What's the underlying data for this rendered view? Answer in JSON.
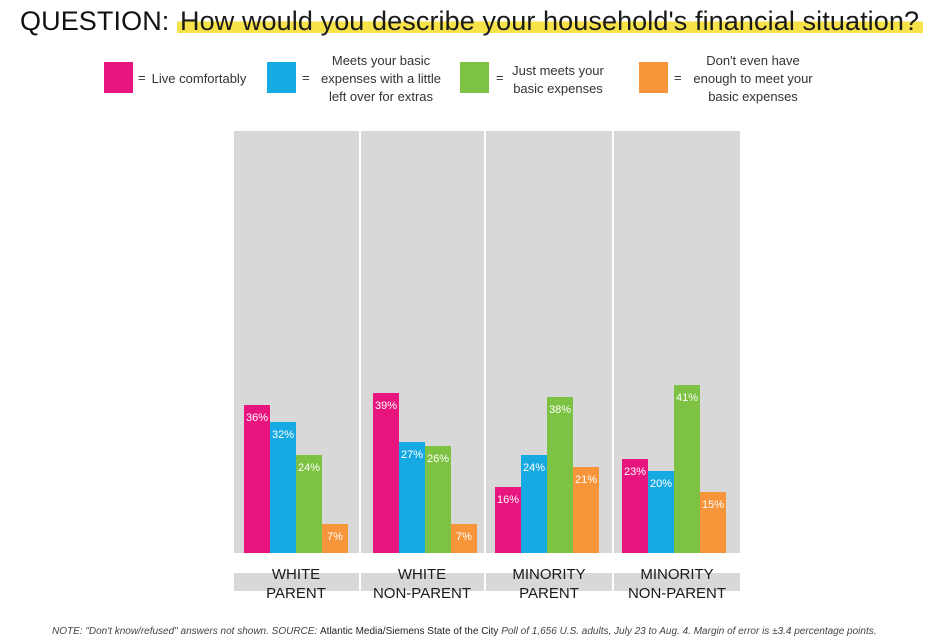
{
  "title": {
    "prefix": "QUESTION:",
    "question": "How would you describe your household's financial situation?"
  },
  "legend": [
    {
      "eq": "=",
      "text": "Live comfortably",
      "color": "#e8157f"
    },
    {
      "eq": "=",
      "text": "Meets your basic\nexpenses with a little\nleft over for extras",
      "color": "#17a9e1"
    },
    {
      "eq": "=",
      "text": "Just meets your\nbasic expenses",
      "color": "#7dc242"
    },
    {
      "eq": "=",
      "text": "Don't even have\nenough to meet your\nbasic expenses",
      "color": "#f7953b"
    }
  ],
  "chart_data": {
    "type": "bar",
    "title": "How would you describe your household's financial situation?",
    "categories": [
      "WHITE\nPARENT",
      "WHITE\nNON-PARENT",
      "MINORITY\nPARENT",
      "MINORITY\nNON-PARENT"
    ],
    "series": [
      {
        "name": "Live comfortably",
        "color": "#e8157f",
        "values": [
          36,
          39,
          16,
          23
        ]
      },
      {
        "name": "Meets your basic expenses with a little left over for extras",
        "color": "#17a9e1",
        "values": [
          32,
          27,
          24,
          20
        ]
      },
      {
        "name": "Just meets your basic expenses",
        "color": "#7dc242",
        "values": [
          24,
          26,
          38,
          41
        ]
      },
      {
        "name": "Don't even have enough to meet your basic expenses",
        "color": "#f7953b",
        "values": [
          7,
          7,
          21,
          15
        ]
      }
    ],
    "value_suffix": "%",
    "grid": false,
    "legend_position": "top"
  },
  "footnote": {
    "note": "NOTE: \"Don't know/refused\" answers not shown. SOURCE: ",
    "source": "Atlantic Media/Siemens State of the City",
    "rest": " Poll of 1,656 U.S. adults, July 23 to Aug. 4. Margin of error is ±3.4 percentage points."
  }
}
